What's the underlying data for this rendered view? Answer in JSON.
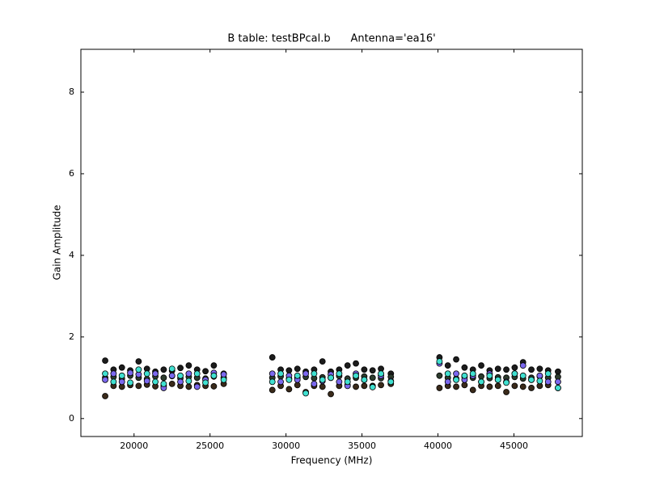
{
  "chart_data": {
    "type": "scatter",
    "title": "B table: testBPcal.b      Antenna='ea16'",
    "x_label": "Frequency (MHz)",
    "y_label": "Gain Amplitude",
    "x": [
      18100,
      18650,
      19200,
      19750,
      20300,
      20850,
      21400,
      21950,
      22500,
      23050,
      23600,
      24150,
      24700,
      25250,
      25900,
      29100,
      29650,
      30200,
      30750,
      31300,
      31850,
      32400,
      32950,
      33500,
      34050,
      34600,
      35150,
      35700,
      36250,
      36900,
      40100,
      40650,
      41200,
      41750,
      42300,
      42850,
      43400,
      43950,
      44500,
      45050,
      45600,
      46150,
      46700,
      47250,
      47900
    ],
    "series": [
      {
        "color": "#1c1c1c",
        "values": [
          1.42,
          1.2,
          1.25,
          1.18,
          1.4,
          1.22,
          1.15,
          1.2,
          1.17,
          1.24,
          1.3,
          1.2,
          1.16,
          1.3,
          1.1,
          1.5,
          1.2,
          1.18,
          1.22,
          1.15,
          1.2,
          1.4,
          1.15,
          1.2,
          1.3,
          1.35,
          1.2,
          1.18,
          1.22,
          1.1,
          1.5,
          1.3,
          1.45,
          1.25,
          1.2,
          1.3,
          1.18,
          1.22,
          1.2,
          1.25,
          1.38,
          1.2,
          1.22,
          1.18,
          1.15
        ]
      },
      {
        "color": "#2d3b2d",
        "values": [
          1.0,
          1.02,
          0.98,
          1.05,
          1.0,
          0.97,
          1.03,
          1.0,
          1.04,
          0.99,
          1.02,
          1.0,
          0.98,
          1.03,
          1.0,
          1.0,
          1.03,
          0.98,
          1.0,
          1.02,
          0.99,
          1.01,
          1.0,
          1.04,
          0.98,
          1.0,
          1.03,
          1.0,
          0.99,
          1.02,
          1.05,
          1.0,
          0.98,
          1.02,
          1.0,
          1.03,
          0.99,
          1.01,
          1.0,
          1.02,
          0.98,
          1.0,
          1.03,
          1.0,
          1.02
        ]
      },
      {
        "color": "#3a2a1a",
        "values": [
          0.55,
          0.8,
          0.78,
          0.82,
          0.8,
          0.83,
          0.79,
          0.8,
          0.85,
          0.8,
          0.78,
          0.82,
          0.8,
          0.79,
          0.85,
          0.7,
          0.8,
          0.72,
          0.82,
          0.65,
          0.8,
          0.78,
          0.6,
          0.8,
          0.82,
          0.78,
          0.8,
          0.8,
          0.82,
          0.85,
          0.75,
          0.8,
          0.78,
          0.82,
          0.7,
          0.8,
          0.78,
          0.8,
          0.65,
          0.8,
          0.78,
          0.75,
          0.8,
          0.82,
          0.75
        ]
      },
      {
        "color": "#7b68ee",
        "values": [
          0.95,
          1.1,
          0.9,
          1.12,
          1.08,
          0.92,
          1.1,
          0.75,
          1.05,
          0.9,
          1.1,
          0.78,
          0.95,
          1.12,
          1.08,
          1.1,
          0.9,
          1.05,
          0.95,
          1.1,
          0.85,
          0.92,
          1.08,
          0.9,
          0.8,
          1.1,
          0.95,
          0.78,
          1.05,
          0.92,
          1.35,
          0.9,
          1.1,
          0.95,
          1.05,
          0.9,
          1.1,
          0.95,
          0.9,
          1.1,
          1.3,
          0.95,
          1.05,
          0.9,
          0.9
        ]
      },
      {
        "color": "#40e0d0",
        "values": [
          1.1,
          0.9,
          1.05,
          0.88,
          1.2,
          1.1,
          0.9,
          0.85,
          1.22,
          1.05,
          0.92,
          1.1,
          0.88,
          1.05,
          0.95,
          0.9,
          1.1,
          0.95,
          1.05,
          0.62,
          1.1,
          0.95,
          1.0,
          1.1,
          0.9,
          1.05,
          0.95,
          0.77,
          1.1,
          0.9,
          1.4,
          1.1,
          0.95,
          1.05,
          1.1,
          0.9,
          1.05,
          0.95,
          0.88,
          1.1,
          1.05,
          0.95,
          0.92,
          1.1,
          0.75
        ]
      }
    ],
    "xlim": [
      16500,
      49500
    ],
    "xticks": [
      20000,
      25000,
      30000,
      35000,
      40000,
      45000
    ],
    "ylim": [
      -0.44,
      9.05
    ],
    "yticks": [
      0,
      2,
      4,
      6,
      8
    ]
  }
}
